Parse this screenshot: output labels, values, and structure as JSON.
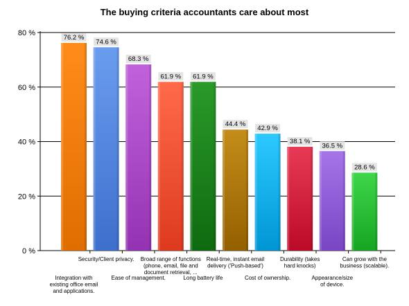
{
  "chart_data": {
    "type": "bar",
    "title": "The buying criteria accountants care about most",
    "xlabel": "",
    "ylabel": "",
    "ylim": [
      0,
      80
    ],
    "yticks": [
      0,
      20,
      40,
      60,
      80
    ],
    "ytick_labels": [
      "0 %",
      "20 %",
      "40 %",
      "60 %",
      "80 %"
    ],
    "grid": true,
    "legend": "none",
    "categories": [
      "Integration with existing office email and applications.",
      "Security/Client privacy.",
      "Ease of management.",
      "Broad range of functions (phone, email, file and document retrieval, ...",
      "Long battery life",
      "Real-time, instant email delivery ('Push-based')",
      "Cost of ownership.",
      "Durability (takes hard knocks)",
      "Appearance/size of device.",
      "Can grow with the business (scalable)."
    ],
    "category_label_lines": [
      [
        "Integration with",
        "existing office email",
        "and applications."
      ],
      [
        "Security/Client privacy."
      ],
      [
        "Ease of management."
      ],
      [
        "Broad range of functions",
        "(phone, email, file and",
        "document retrieval, ..."
      ],
      [
        "Long battery life"
      ],
      [
        "Real-time, instant email",
        "delivery ('Push-based')"
      ],
      [
        "Cost of ownership."
      ],
      [
        "Durability (takes",
        "hard knocks)"
      ],
      [
        "Appearance/size",
        "of device."
      ],
      [
        "Can grow with the",
        "business (scalable)."
      ]
    ],
    "category_label_row": [
      "low",
      "high",
      "low",
      "high",
      "low",
      "high",
      "low",
      "high",
      "low",
      "high"
    ],
    "values": [
      76.2,
      74.6,
      68.3,
      61.9,
      61.9,
      44.4,
      42.9,
      38.1,
      36.5,
      28.6
    ],
    "value_labels": [
      "76.2 %",
      "74.6 %",
      "68.3 %",
      "61.9 %",
      "61.9 %",
      "44.4 %",
      "42.9 %",
      "38.1 %",
      "36.5 %",
      "28.6 %"
    ],
    "colors": [
      [
        "#ff8c1a",
        "#e06d00"
      ],
      [
        "#6a9cef",
        "#3e6fcc"
      ],
      [
        "#c162dc",
        "#9433b2"
      ],
      [
        "#ff6a4a",
        "#dd3a1e"
      ],
      [
        "#2a9a2a",
        "#0f6a0f"
      ],
      [
        "#c48d1a",
        "#946000"
      ],
      [
        "#2cc9ff",
        "#0096d4"
      ],
      [
        "#e83a55",
        "#bb0a28"
      ],
      [
        "#a575e8",
        "#7945c4"
      ],
      [
        "#3ed64a",
        "#16a522"
      ]
    ]
  }
}
